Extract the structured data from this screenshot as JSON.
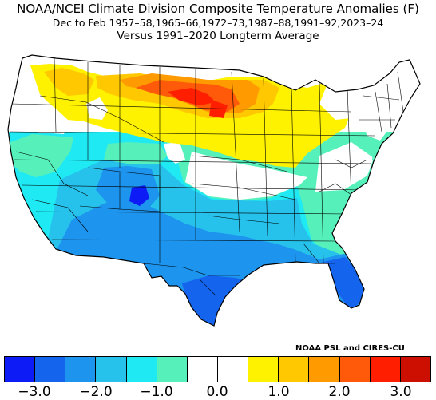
{
  "title": {
    "line1": "NOAA/NCEI Climate Division Composite Temperature Anomalies (F)",
    "line2": "Dec to Feb  1957–58,1965–66,1972–73,1987–88,1991–92,2023–24",
    "line3": "Versus 1991–2020 Longterm Average"
  },
  "credit": "NOAA PSL and CIRES-CU",
  "colorbar": {
    "colors": [
      "#0d1bf6",
      "#1564ee",
      "#1d94ed",
      "#26c2ec",
      "#1fe9f2",
      "#56f0bb",
      "#ffffff",
      "#ffffff",
      "#fff200",
      "#ffc800",
      "#ff9a00",
      "#ff5a0a",
      "#ff1e00",
      "#cc0f00"
    ],
    "bins": [
      [
        -3.5,
        -3.0
      ],
      [
        -3.0,
        -2.5
      ],
      [
        -2.5,
        -2.0
      ],
      [
        -2.0,
        -1.5
      ],
      [
        -1.5,
        -1.0
      ],
      [
        -1.0,
        -0.5
      ],
      [
        -0.5,
        0.0
      ],
      [
        0.0,
        0.5
      ],
      [
        0.5,
        1.0
      ],
      [
        1.0,
        1.5
      ],
      [
        1.5,
        2.0
      ],
      [
        2.0,
        2.5
      ],
      [
        2.5,
        3.0
      ],
      [
        3.0,
        3.5
      ]
    ],
    "ticks": [
      "−3.0",
      "−2.0",
      "−1.0",
      "0.0",
      "1.0",
      "2.0",
      "3.0"
    ],
    "tick_values": [
      -3.0,
      -2.0,
      -1.0,
      0.0,
      1.0,
      2.0,
      3.0
    ]
  },
  "map": {
    "region": "Contiguous United States",
    "units": "F",
    "anomaly_pattern": [
      {
        "region": "Northern Plains (ND, SD, northern MN)",
        "anomaly_f": 2.0
      },
      {
        "region": "Montana / Idaho panhandle / WA interior",
        "anomaly_f": 1.5
      },
      {
        "region": "Great Lakes / Upper Midwest / NE Plains",
        "anomaly_f": 1.0
      },
      {
        "region": "Pacific Northwest coast / Mid-Atlantic / New England",
        "anomaly_f": 0.0
      },
      {
        "region": "Central Plains / Ohio Valley",
        "anomaly_f": 0.0
      },
      {
        "region": "Southeast / Tennessee Valley",
        "anomaly_f": -1.0
      },
      {
        "region": "California / Great Basin",
        "anomaly_f": -1.5
      },
      {
        "region": "Arizona / New Mexico / Colorado / Texas / Gulf Coast",
        "anomaly_f": -2.0
      },
      {
        "region": "Southwest Colorado / S. Texas / Florida",
        "anomaly_f": -2.5
      },
      {
        "region": "Southwest Colorado peak",
        "anomaly_f": -3.0
      }
    ]
  }
}
